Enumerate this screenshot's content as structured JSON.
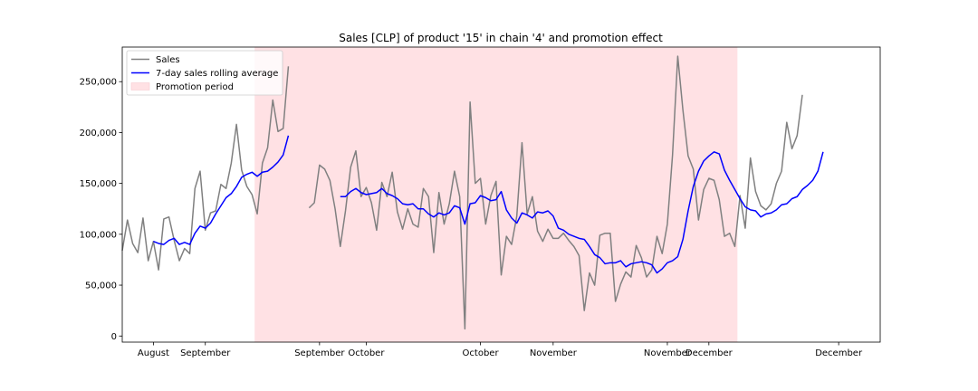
{
  "chart_data": {
    "type": "line",
    "title": "Sales [CLP] of product '15' in chain '4' and promotion effect",
    "xlabel": "",
    "ylabel": "",
    "ylim": [
      -6000,
      284000
    ],
    "yticks": [
      0,
      50000,
      100000,
      150000,
      200000,
      250000
    ],
    "ytick_labels": [
      "0",
      "50,000",
      "100,000",
      "150,000",
      "200,000",
      "250,000"
    ],
    "xlim": [
      0,
      146
    ],
    "xticks": [
      {
        "x": 6,
        "label": "August"
      },
      {
        "x": 16,
        "label": "September"
      },
      {
        "x": 38,
        "label": "September"
      },
      {
        "x": 47,
        "label": "October"
      },
      {
        "x": 69,
        "label": "October"
      },
      {
        "x": 83,
        "label": "November"
      },
      {
        "x": 105,
        "label": "November"
      },
      {
        "x": 113,
        "label": "December"
      },
      {
        "x": 138,
        "label": "December"
      }
    ],
    "legend_placement": "top-left",
    "grid": false,
    "colors": {
      "sales": "#808080",
      "rolling": "#0000ff",
      "promotion": "#ffe1e4"
    },
    "promotion_period": {
      "x_start": 25.5,
      "x_end": 118.5
    },
    "series": [
      {
        "name": "Sales",
        "segments": [
          {
            "x_start": 0,
            "values": [
              84000,
              114000,
              91000,
              82000,
              116000,
              74000,
              93000,
              65000,
              115000,
              117000,
              94000,
              74000,
              86000,
              81000,
              145000,
              162000,
              104000,
              121000,
              123000,
              149000,
              145000,
              170000,
              208000,
              163000,
              147000,
              139000,
              120000,
              170000,
              185000,
              232000,
              201000,
              204000,
              265000
            ]
          },
          {
            "x_start": 36,
            "values": [
              126000,
              131000,
              168000,
              164000,
              153000,
              125000,
              88000,
              123000,
              166000,
              182000,
              137000,
              146000,
              131000,
              104000,
              151000,
              137000,
              161000,
              122000,
              105000,
              125000,
              110000,
              107000,
              145000,
              137000,
              82000,
              141000,
              110000,
              130000,
              162000,
              137000,
              7000,
              230000,
              150000,
              155000,
              110000,
              138000,
              152000,
              60000,
              98000,
              90000,
              118000,
              190000,
              120000,
              137000,
              103000,
              93000,
              105000,
              96000,
              96000,
              101000,
              94000,
              88000,
              79000,
              25000,
              62000,
              50000,
              99000,
              101000,
              101000,
              34000,
              51000,
              63000,
              58000,
              89000,
              77000,
              58000,
              65000,
              98000,
              81000,
              110000,
              178000,
              275000,
              222000,
              177000,
              164000,
              114000,
              144000,
              155000,
              153000,
              134000,
              98000,
              101000,
              88000,
              138000,
              106000,
              175000,
              142000,
              128000,
              124000,
              130000,
              150000,
              162000,
              210000,
              184000,
              197000,
              237000
            ]
          }
        ]
      },
      {
        "name": "7-day sales rolling average",
        "segments": [
          {
            "x_start": 6,
            "values": [
              93000,
              91000,
              90000,
              94000,
              96000,
              90000,
              92000,
              90000,
              101000,
              108000,
              106000,
              111000,
              120000,
              128000,
              136000,
              140000,
              147000,
              156000,
              159000,
              161000,
              157000,
              161000,
              162000,
              166000,
              171000,
              178000,
              197000
            ]
          },
          {
            "x_start": 42,
            "values": [
              137000,
              137000,
              142000,
              145000,
              141000,
              139000,
              140000,
              141000,
              145000,
              140000,
              138000,
              135000,
              130000,
              129000,
              130000,
              125000,
              125000,
              120000,
              117000,
              121000,
              119000,
              121000,
              128000,
              126000,
              110000,
              130000,
              131000,
              138000,
              136000,
              133000,
              134000,
              142000,
              124000,
              116000,
              111000,
              121000,
              119000,
              116000,
              122000,
              121000,
              123000,
              118000,
              106000,
              104000,
              100000,
              98000,
              96000,
              95000,
              88000,
              80000,
              77000,
              71000,
              72000,
              72000,
              74000,
              68000,
              71000,
              72000,
              73000,
              72000,
              70000,
              62000,
              66000,
              72000,
              74000,
              78000,
              95000,
              123000,
              147000,
              162000,
              172000,
              177000,
              181000,
              179000,
              163000,
              153000,
              144000,
              135000,
              127000,
              124000,
              123000,
              117000,
              120000,
              121000,
              124000,
              129000,
              130000,
              135000,
              137000,
              144000,
              148000,
              153000,
              162000,
              181000
            ]
          }
        ]
      }
    ],
    "legend": [
      {
        "label": "Sales",
        "kind": "line",
        "color": "#808080"
      },
      {
        "label": "7-day sales rolling average",
        "kind": "line",
        "color": "#0000ff"
      },
      {
        "label": "Promotion period",
        "kind": "patch",
        "color": "#ffe1e4"
      }
    ]
  }
}
